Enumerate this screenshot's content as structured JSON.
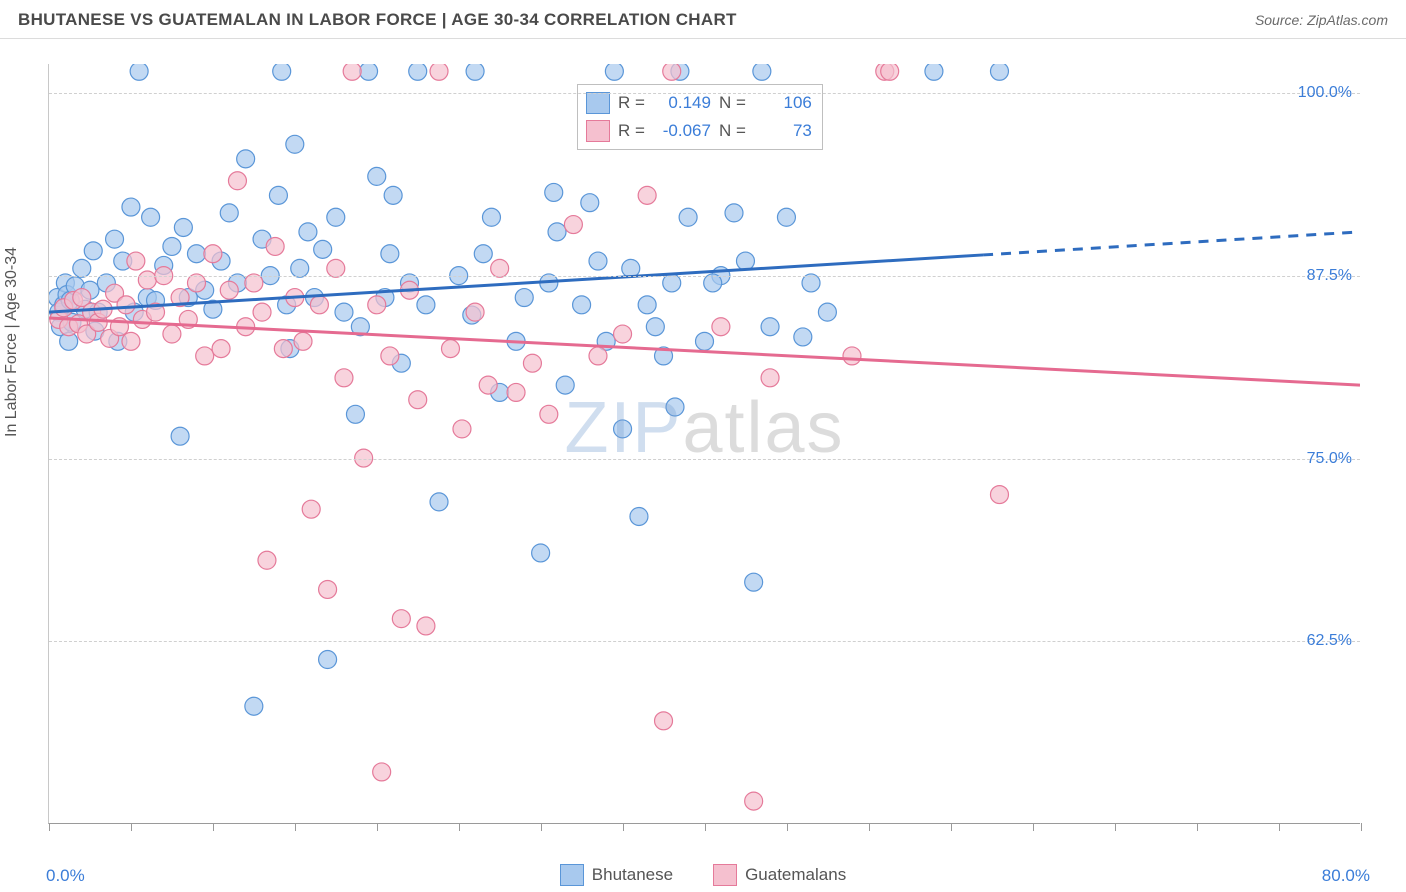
{
  "header": {
    "title": "BHUTANESE VS GUATEMALAN IN LABOR FORCE | AGE 30-34 CORRELATION CHART",
    "source": "Source: ZipAtlas.com"
  },
  "chart": {
    "type": "scatter",
    "y_axis_title": "In Labor Force | Age 30-34",
    "xlim": [
      0,
      80
    ],
    "ylim": [
      50,
      102
    ],
    "x_tick_step": 5,
    "y_ticks": [
      62.5,
      75.0,
      87.5,
      100.0
    ],
    "y_tick_labels": [
      "62.5%",
      "75.0%",
      "87.5%",
      "100.0%"
    ],
    "x_label_min": "0.0%",
    "x_label_max": "80.0%",
    "background_color": "#ffffff",
    "grid_color": "#d0d0d0",
    "series": [
      {
        "name": "Bhutanese",
        "color_fill": "#a8c9ee",
        "color_stroke": "#5a96d8",
        "marker_radius": 9,
        "marker_opacity": 0.7,
        "trend": {
          "x1": 0,
          "y1": 85.0,
          "x2": 80,
          "y2": 90.5,
          "dash_from_x": 57,
          "stroke": "#2e6cbf",
          "width": 3
        },
        "stats": {
          "r_label": "R =",
          "r": "0.149",
          "n_label": "N =",
          "n": "106"
        },
        "points": [
          [
            0.5,
            86
          ],
          [
            0.6,
            85
          ],
          [
            0.7,
            84
          ],
          [
            0.9,
            85.5
          ],
          [
            1.0,
            87
          ],
          [
            1.1,
            86.2
          ],
          [
            1.3,
            85.8
          ],
          [
            1.4,
            84.3
          ],
          [
            1.6,
            86.8
          ],
          [
            2,
            88
          ],
          [
            2.2,
            85.2
          ],
          [
            2.5,
            86.5
          ],
          [
            2.7,
            89.2
          ],
          [
            3,
            85
          ],
          [
            3.5,
            87
          ],
          [
            4,
            90
          ],
          [
            4.2,
            83
          ],
          [
            4.5,
            88.5
          ],
          [
            5,
            92.2
          ],
          [
            5.2,
            85
          ],
          [
            5.5,
            101.5
          ],
          [
            6,
            86
          ],
          [
            6.2,
            91.5
          ],
          [
            6.5,
            85.8
          ],
          [
            7,
            88.2
          ],
          [
            7.5,
            89.5
          ],
          [
            8,
            76.5
          ],
          [
            8.2,
            90.8
          ],
          [
            8.5,
            86
          ],
          [
            9,
            89
          ],
          [
            9.5,
            86.5
          ],
          [
            10,
            85.2
          ],
          [
            10.5,
            88.5
          ],
          [
            11,
            91.8
          ],
          [
            11.5,
            87
          ],
          [
            12,
            95.5
          ],
          [
            12.5,
            58
          ],
          [
            13,
            90
          ],
          [
            13.5,
            87.5
          ],
          [
            14,
            93
          ],
          [
            14.5,
            85.5
          ],
          [
            15,
            96.5
          ],
          [
            15.3,
            88
          ],
          [
            15.8,
            90.5
          ],
          [
            14.2,
            101.5
          ],
          [
            16.2,
            86
          ],
          [
            17,
            61.2
          ],
          [
            17.5,
            91.5
          ],
          [
            18,
            85
          ],
          [
            18.7,
            78
          ],
          [
            19,
            84
          ],
          [
            19.5,
            101.5
          ],
          [
            20,
            94.3
          ],
          [
            20.5,
            86
          ],
          [
            21,
            93
          ],
          [
            21.5,
            81.5
          ],
          [
            22,
            87
          ],
          [
            22.5,
            101.5
          ],
          [
            23,
            85.5
          ],
          [
            23.8,
            72
          ],
          [
            25,
            87.5
          ],
          [
            25.8,
            84.8
          ],
          [
            26,
            101.5
          ],
          [
            27,
            91.5
          ],
          [
            27.5,
            79.5
          ],
          [
            28.5,
            83
          ],
          [
            29,
            86
          ],
          [
            30,
            68.5
          ],
          [
            30.5,
            87
          ],
          [
            30.8,
            93.2
          ],
          [
            31.5,
            80
          ],
          [
            32.5,
            85.5
          ],
          [
            33,
            92.5
          ],
          [
            34,
            83
          ],
          [
            34.5,
            101.5
          ],
          [
            35,
            77
          ],
          [
            35.5,
            88
          ],
          [
            36,
            71
          ],
          [
            36.5,
            85.5
          ],
          [
            37,
            84
          ],
          [
            37.5,
            82
          ],
          [
            38,
            87
          ],
          [
            38.5,
            101.5
          ],
          [
            39,
            91.5
          ],
          [
            40,
            83
          ],
          [
            41,
            87.5
          ],
          [
            41.8,
            91.8
          ],
          [
            43,
            66.5
          ],
          [
            43.5,
            101.5
          ],
          [
            44,
            84
          ],
          [
            45,
            91.5
          ],
          [
            46,
            83.3
          ],
          [
            47.5,
            85
          ],
          [
            58,
            101.5
          ],
          [
            1.2,
            83
          ],
          [
            2.8,
            83.7
          ],
          [
            14.7,
            82.5
          ],
          [
            16.7,
            89.3
          ],
          [
            20.8,
            89
          ],
          [
            26.5,
            89
          ],
          [
            31,
            90.5
          ],
          [
            33.5,
            88.5
          ],
          [
            38.2,
            78.5
          ],
          [
            40.5,
            87
          ],
          [
            42.5,
            88.5
          ],
          [
            46.5,
            87
          ],
          [
            54,
            101.5
          ]
        ]
      },
      {
        "name": "Guatemalans",
        "color_fill": "#f5c0cf",
        "color_stroke": "#e57a9a",
        "marker_radius": 9,
        "marker_opacity": 0.7,
        "trend": {
          "x1": 0,
          "y1": 84.6,
          "x2": 80,
          "y2": 80.0,
          "dash_from_x": 80,
          "stroke": "#e56a90",
          "width": 3
        },
        "stats": {
          "r_label": "R =",
          "r": "-0.067",
          "n_label": "N =",
          "n": "73"
        },
        "points": [
          [
            0.6,
            84.5
          ],
          [
            0.9,
            85.3
          ],
          [
            1.2,
            84
          ],
          [
            1.5,
            85.8
          ],
          [
            1.8,
            84.2
          ],
          [
            2,
            86
          ],
          [
            2.3,
            83.5
          ],
          [
            2.6,
            85
          ],
          [
            3,
            84.3
          ],
          [
            3.3,
            85.2
          ],
          [
            3.7,
            83.2
          ],
          [
            4,
            86.3
          ],
          [
            4.3,
            84
          ],
          [
            4.7,
            85.5
          ],
          [
            5,
            83
          ],
          [
            5.3,
            88.5
          ],
          [
            5.7,
            84.5
          ],
          [
            6,
            87.2
          ],
          [
            6.5,
            85
          ],
          [
            7,
            87.5
          ],
          [
            7.5,
            83.5
          ],
          [
            8,
            86
          ],
          [
            8.5,
            84.5
          ],
          [
            9,
            87
          ],
          [
            9.5,
            82
          ],
          [
            10,
            89
          ],
          [
            10.5,
            82.5
          ],
          [
            11,
            86.5
          ],
          [
            11.5,
            94
          ],
          [
            12,
            84
          ],
          [
            12.5,
            87
          ],
          [
            13,
            85
          ],
          [
            13.3,
            68
          ],
          [
            13.8,
            89.5
          ],
          [
            14.3,
            82.5
          ],
          [
            15,
            86
          ],
          [
            15.5,
            83
          ],
          [
            16,
            71.5
          ],
          [
            16.5,
            85.5
          ],
          [
            17,
            66
          ],
          [
            17.5,
            88
          ],
          [
            18,
            80.5
          ],
          [
            18.5,
            101.5
          ],
          [
            19.2,
            75
          ],
          [
            20,
            85.5
          ],
          [
            20.8,
            82
          ],
          [
            21.5,
            64
          ],
          [
            22,
            86.5
          ],
          [
            22.5,
            79
          ],
          [
            23,
            63.5
          ],
          [
            23.8,
            101.5
          ],
          [
            24.5,
            82.5
          ],
          [
            25.2,
            77
          ],
          [
            26,
            85
          ],
          [
            26.8,
            80
          ],
          [
            27.5,
            88
          ],
          [
            28.5,
            79.5
          ],
          [
            29.5,
            81.5
          ],
          [
            30.5,
            78
          ],
          [
            32,
            91
          ],
          [
            33.5,
            82
          ],
          [
            35,
            83.5
          ],
          [
            36.5,
            93
          ],
          [
            37.5,
            57
          ],
          [
            38,
            101.5
          ],
          [
            41,
            84
          ],
          [
            43,
            51.5
          ],
          [
            44,
            80.5
          ],
          [
            49,
            82
          ],
          [
            51,
            101.5
          ],
          [
            51.3,
            101.5
          ],
          [
            58,
            72.5
          ],
          [
            20.3,
            53.5
          ]
        ]
      }
    ],
    "bottom_legend": [
      {
        "label": "Bhutanese",
        "fill": "#a8c9ee",
        "stroke": "#5a96d8"
      },
      {
        "label": "Guatemalans",
        "fill": "#f5c0cf",
        "stroke": "#e57a9a"
      }
    ],
    "watermark": {
      "part1": "ZIP",
      "part2": "atlas"
    }
  }
}
